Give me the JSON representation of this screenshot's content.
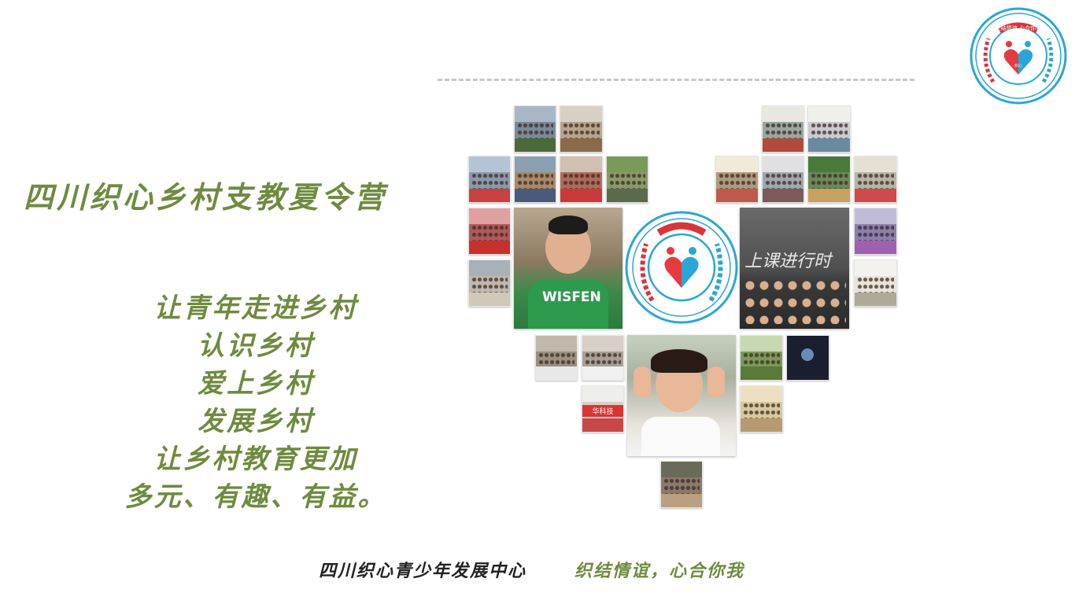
{
  "header": {
    "title": "四川织心乡村支教夏令营"
  },
  "slogan": {
    "lines": [
      "让青年走进乡村",
      "认识乡村",
      "爱上乡村",
      "发展乡村",
      "让乡村教育更加",
      "多元、有趣、有益。"
    ]
  },
  "footer": {
    "organization": "四川织心青少年发展中心",
    "motto": "织结情谊，心合你我"
  },
  "logo": {
    "text_top": "织结情谊 心合你我",
    "inner_text": "织心",
    "colors": {
      "ring": "#2aa6d6",
      "laurel_left": "#d8353b",
      "laurel_right": "#2aa6d6",
      "heart_red": "#e53a3f",
      "heart_blue": "#2aa6d6"
    }
  },
  "photos": {
    "shirt_text": "WISFEN",
    "chalkboard_text": "上课进行时",
    "sign_text": "华科技"
  },
  "colors": {
    "accent_green": "#6f8b3f",
    "dash": "#c8c8c8",
    "footer_dark": "#222222"
  }
}
